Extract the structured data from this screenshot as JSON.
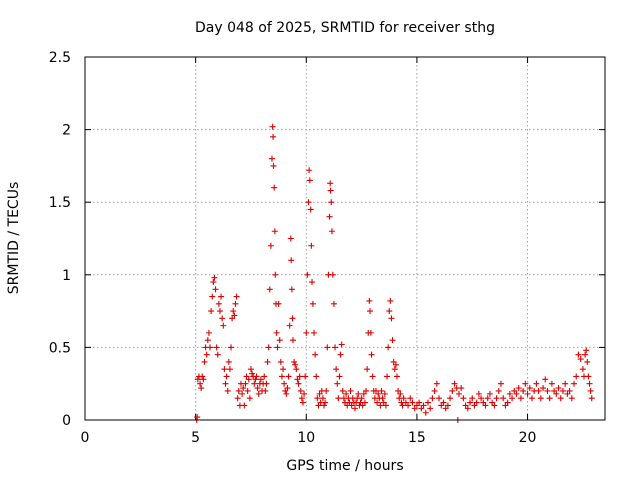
{
  "chart_data": {
    "type": "scatter",
    "title": "Day 048 of 2025, SRMTID for receiver sthg",
    "xlabel": "GPS time / hours",
    "ylabel": "SRMTID / TECUs",
    "xlim": [
      0,
      23.5
    ],
    "ylim": [
      0,
      2.5
    ],
    "xticks": [
      0,
      5,
      10,
      15,
      20
    ],
    "xtick_labels": [
      "0",
      "5",
      "10",
      "15",
      "20"
    ],
    "yticks": [
      0,
      0.5,
      1,
      1.5,
      2,
      2.5
    ],
    "ytick_labels": [
      "0",
      "0.5",
      "1",
      "1.5",
      "2",
      "2.5"
    ],
    "grid": true,
    "marker": "+",
    "series": [
      {
        "name": "SRMTID",
        "color": "#e00000",
        "points": [
          [
            5.05,
            0.0
          ],
          [
            5.07,
            0.02
          ],
          [
            5.1,
            0.28
          ],
          [
            5.15,
            0.3
          ],
          [
            5.2,
            0.25
          ],
          [
            5.25,
            0.22
          ],
          [
            5.3,
            0.3
          ],
          [
            5.35,
            0.28
          ],
          [
            5.4,
            0.4
          ],
          [
            5.45,
            0.5
          ],
          [
            5.5,
            0.45
          ],
          [
            5.55,
            0.55
          ],
          [
            5.6,
            0.6
          ],
          [
            5.65,
            0.5
          ],
          [
            5.7,
            0.75
          ],
          [
            5.75,
            0.85
          ],
          [
            5.8,
            0.95
          ],
          [
            5.85,
            0.98
          ],
          [
            5.9,
            0.9
          ],
          [
            5.95,
            0.5
          ],
          [
            6.0,
            0.45
          ],
          [
            6.05,
            0.8
          ],
          [
            6.1,
            0.75
          ],
          [
            6.15,
            0.85
          ],
          [
            6.2,
            0.7
          ],
          [
            6.25,
            0.65
          ],
          [
            6.3,
            0.35
          ],
          [
            6.35,
            0.25
          ],
          [
            6.4,
            0.3
          ],
          [
            6.45,
            0.2
          ],
          [
            6.5,
            0.4
          ],
          [
            6.55,
            0.35
          ],
          [
            6.6,
            0.5
          ],
          [
            6.65,
            0.7
          ],
          [
            6.7,
            0.75
          ],
          [
            6.75,
            0.72
          ],
          [
            6.8,
            0.8
          ],
          [
            6.85,
            0.85
          ],
          [
            6.9,
            0.15
          ],
          [
            6.95,
            0.2
          ],
          [
            7.0,
            0.1
          ],
          [
            7.05,
            0.25
          ],
          [
            7.1,
            0.18
          ],
          [
            7.15,
            0.22
          ],
          [
            7.2,
            0.1
          ],
          [
            7.25,
            0.25
          ],
          [
            7.3,
            0.3
          ],
          [
            7.35,
            0.2
          ],
          [
            7.4,
            0.28
          ],
          [
            7.45,
            0.15
          ],
          [
            7.5,
            0.35
          ],
          [
            7.55,
            0.32
          ],
          [
            7.6,
            0.3
          ],
          [
            7.65,
            0.25
          ],
          [
            7.7,
            0.28
          ],
          [
            7.75,
            0.3
          ],
          [
            7.8,
            0.22
          ],
          [
            7.85,
            0.18
          ],
          [
            7.9,
            0.25
          ],
          [
            7.95,
            0.28
          ],
          [
            8.0,
            0.2
          ],
          [
            8.05,
            0.25
          ],
          [
            8.1,
            0.3
          ],
          [
            8.15,
            0.2
          ],
          [
            8.2,
            0.25
          ],
          [
            8.25,
            0.4
          ],
          [
            8.3,
            0.5
          ],
          [
            8.35,
            0.9
          ],
          [
            8.4,
            1.2
          ],
          [
            8.45,
            1.8
          ],
          [
            8.48,
            2.02
          ],
          [
            8.5,
            1.95
          ],
          [
            8.52,
            1.75
          ],
          [
            8.55,
            1.6
          ],
          [
            8.58,
            1.3
          ],
          [
            8.6,
            1.0
          ],
          [
            8.63,
            0.8
          ],
          [
            8.66,
            0.6
          ],
          [
            8.7,
            0.5
          ],
          [
            8.75,
            0.8
          ],
          [
            8.8,
            0.55
          ],
          [
            8.85,
            0.4
          ],
          [
            8.9,
            0.3
          ],
          [
            8.95,
            0.35
          ],
          [
            9.0,
            0.25
          ],
          [
            9.05,
            0.2
          ],
          [
            9.1,
            0.18
          ],
          [
            9.15,
            0.22
          ],
          [
            9.2,
            0.3
          ],
          [
            9.25,
            0.65
          ],
          [
            9.3,
            1.25
          ],
          [
            9.32,
            1.1
          ],
          [
            9.35,
            0.9
          ],
          [
            9.38,
            0.7
          ],
          [
            9.4,
            0.55
          ],
          [
            9.45,
            0.4
          ],
          [
            9.5,
            0.38
          ],
          [
            9.55,
            0.35
          ],
          [
            9.6,
            0.28
          ],
          [
            9.65,
            0.25
          ],
          [
            9.7,
            0.3
          ],
          [
            9.75,
            0.2
          ],
          [
            9.8,
            0.15
          ],
          [
            9.85,
            0.12
          ],
          [
            9.9,
            0.18
          ],
          [
            9.95,
            0.3
          ],
          [
            10.0,
            0.6
          ],
          [
            10.05,
            1.0
          ],
          [
            10.1,
            1.5
          ],
          [
            10.13,
            1.72
          ],
          [
            10.16,
            1.65
          ],
          [
            10.2,
            1.45
          ],
          [
            10.23,
            1.2
          ],
          [
            10.26,
            0.95
          ],
          [
            10.3,
            0.8
          ],
          [
            10.35,
            0.6
          ],
          [
            10.4,
            0.45
          ],
          [
            10.45,
            0.3
          ],
          [
            10.5,
            0.15
          ],
          [
            10.55,
            0.1
          ],
          [
            10.6,
            0.18
          ],
          [
            10.65,
            0.12
          ],
          [
            10.7,
            0.2
          ],
          [
            10.75,
            0.15
          ],
          [
            10.8,
            0.1
          ],
          [
            10.85,
            0.12
          ],
          [
            10.9,
            0.2
          ],
          [
            10.95,
            0.5
          ],
          [
            11.0,
            1.0
          ],
          [
            11.05,
            1.4
          ],
          [
            11.08,
            1.63
          ],
          [
            11.1,
            1.58
          ],
          [
            11.13,
            1.5
          ],
          [
            11.16,
            1.3
          ],
          [
            11.2,
            1.0
          ],
          [
            11.25,
            0.8
          ],
          [
            11.3,
            0.5
          ],
          [
            11.35,
            0.35
          ],
          [
            11.4,
            0.25
          ],
          [
            11.45,
            0.15
          ],
          [
            11.5,
            0.3
          ],
          [
            11.55,
            0.45
          ],
          [
            11.6,
            0.52
          ],
          [
            11.65,
            0.2
          ],
          [
            11.7,
            0.15
          ],
          [
            11.75,
            0.12
          ],
          [
            11.8,
            0.18
          ],
          [
            11.85,
            0.1
          ],
          [
            11.9,
            0.15
          ],
          [
            11.95,
            0.12
          ],
          [
            12.0,
            0.2
          ],
          [
            12.05,
            0.1
          ],
          [
            12.1,
            0.15
          ],
          [
            12.15,
            0.12
          ],
          [
            12.2,
            0.08
          ],
          [
            12.25,
            0.12
          ],
          [
            12.3,
            0.15
          ],
          [
            12.35,
            0.18
          ],
          [
            12.4,
            0.1
          ],
          [
            12.45,
            0.12
          ],
          [
            12.5,
            0.15
          ],
          [
            12.55,
            0.1
          ],
          [
            12.6,
            0.18
          ],
          [
            12.65,
            0.12
          ],
          [
            12.7,
            0.2
          ],
          [
            12.75,
            0.35
          ],
          [
            12.8,
            0.6
          ],
          [
            12.85,
            0.82
          ],
          [
            12.88,
            0.75
          ],
          [
            12.92,
            0.6
          ],
          [
            12.95,
            0.45
          ],
          [
            13.0,
            0.3
          ],
          [
            13.05,
            0.2
          ],
          [
            13.1,
            0.15
          ],
          [
            13.15,
            0.2
          ],
          [
            13.2,
            0.12
          ],
          [
            13.25,
            0.18
          ],
          [
            13.3,
            0.15
          ],
          [
            13.35,
            0.1
          ],
          [
            13.4,
            0.2
          ],
          [
            13.45,
            0.15
          ],
          [
            13.5,
            0.12
          ],
          [
            13.55,
            0.18
          ],
          [
            13.6,
            0.1
          ],
          [
            13.65,
            0.3
          ],
          [
            13.7,
            0.5
          ],
          [
            13.75,
            0.75
          ],
          [
            13.8,
            0.82
          ],
          [
            13.85,
            0.7
          ],
          [
            13.9,
            0.55
          ],
          [
            13.95,
            0.4
          ],
          [
            14.0,
            0.35
          ],
          [
            14.05,
            0.38
          ],
          [
            14.1,
            0.3
          ],
          [
            14.15,
            0.2
          ],
          [
            14.2,
            0.15
          ],
          [
            14.25,
            0.18
          ],
          [
            14.3,
            0.12
          ],
          [
            14.35,
            0.1
          ],
          [
            14.4,
            0.15
          ],
          [
            14.5,
            0.12
          ],
          [
            14.6,
            0.1
          ],
          [
            14.7,
            0.15
          ],
          [
            14.8,
            0.12
          ],
          [
            14.9,
            0.08
          ],
          [
            15.0,
            0.1
          ],
          [
            15.1,
            0.12
          ],
          [
            15.2,
            0.08
          ],
          [
            15.3,
            0.1
          ],
          [
            15.4,
            0.05
          ],
          [
            15.5,
            0.12
          ],
          [
            15.6,
            0.08
          ],
          [
            15.7,
            0.15
          ],
          [
            15.8,
            0.2
          ],
          [
            15.9,
            0.25
          ],
          [
            16.0,
            0.15
          ],
          [
            16.1,
            0.1
          ],
          [
            16.2,
            0.12
          ],
          [
            16.3,
            0.08
          ],
          [
            16.4,
            0.1
          ],
          [
            16.5,
            0.15
          ],
          [
            16.6,
            0.2
          ],
          [
            16.7,
            0.25
          ],
          [
            16.8,
            0.22
          ],
          [
            16.85,
            0.0
          ],
          [
            16.9,
            0.18
          ],
          [
            17.0,
            0.22
          ],
          [
            17.1,
            0.15
          ],
          [
            17.2,
            0.1
          ],
          [
            17.3,
            0.08
          ],
          [
            17.4,
            0.12
          ],
          [
            17.5,
            0.15
          ],
          [
            17.6,
            0.1
          ],
          [
            17.7,
            0.12
          ],
          [
            17.8,
            0.18
          ],
          [
            17.9,
            0.15
          ],
          [
            18.0,
            0.12
          ],
          [
            18.1,
            0.1
          ],
          [
            18.2,
            0.15
          ],
          [
            18.3,
            0.18
          ],
          [
            18.4,
            0.12
          ],
          [
            18.5,
            0.1
          ],
          [
            18.6,
            0.15
          ],
          [
            18.7,
            0.2
          ],
          [
            18.8,
            0.25
          ],
          [
            18.9,
            0.15
          ],
          [
            19.0,
            0.1
          ],
          [
            19.1,
            0.12
          ],
          [
            19.2,
            0.18
          ],
          [
            19.3,
            0.15
          ],
          [
            19.4,
            0.2
          ],
          [
            19.5,
            0.18
          ],
          [
            19.6,
            0.22
          ],
          [
            19.7,
            0.15
          ],
          [
            19.8,
            0.2
          ],
          [
            19.9,
            0.25
          ],
          [
            20.0,
            0.18
          ],
          [
            20.1,
            0.22
          ],
          [
            20.2,
            0.15
          ],
          [
            20.3,
            0.2
          ],
          [
            20.4,
            0.25
          ],
          [
            20.5,
            0.2
          ],
          [
            20.6,
            0.15
          ],
          [
            20.7,
            0.22
          ],
          [
            20.8,
            0.28
          ],
          [
            20.9,
            0.2
          ],
          [
            21.0,
            0.15
          ],
          [
            21.1,
            0.25
          ],
          [
            21.2,
            0.2
          ],
          [
            21.3,
            0.18
          ],
          [
            21.4,
            0.22
          ],
          [
            21.5,
            0.15
          ],
          [
            21.6,
            0.2
          ],
          [
            21.7,
            0.25
          ],
          [
            21.8,
            0.18
          ],
          [
            21.9,
            0.2
          ],
          [
            22.0,
            0.15
          ],
          [
            22.1,
            0.25
          ],
          [
            22.2,
            0.3
          ],
          [
            22.3,
            0.45
          ],
          [
            22.4,
            0.42
          ],
          [
            22.5,
            0.35
          ],
          [
            22.55,
            0.3
          ],
          [
            22.6,
            0.45
          ],
          [
            22.65,
            0.48
          ],
          [
            22.7,
            0.4
          ],
          [
            22.75,
            0.3
          ],
          [
            22.8,
            0.25
          ],
          [
            22.85,
            0.2
          ],
          [
            22.9,
            0.15
          ]
        ]
      }
    ]
  }
}
